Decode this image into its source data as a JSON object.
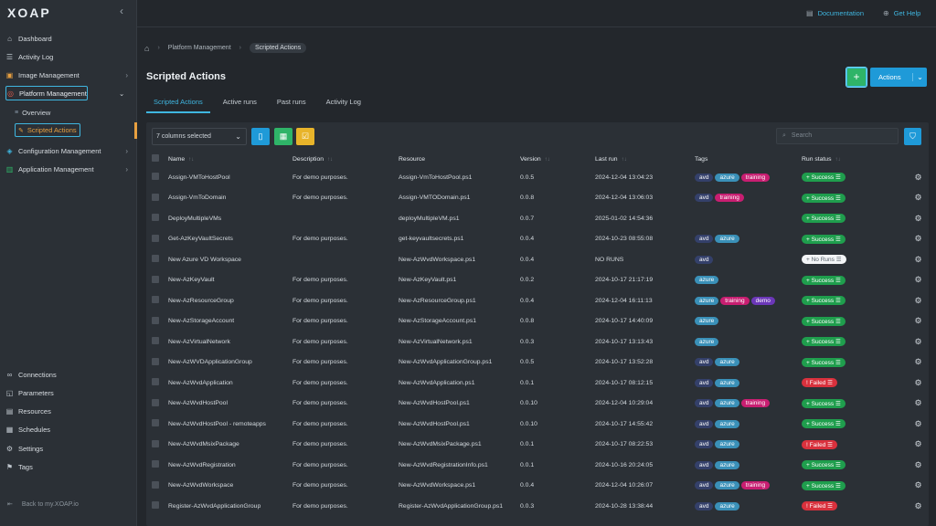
{
  "app": {
    "logo_text": "XOAP"
  },
  "sidebar": {
    "collapse_glyph": "‹",
    "items": [
      {
        "label": "Dashboard",
        "icon": "home-icon"
      },
      {
        "label": "Activity Log",
        "icon": "list-icon"
      },
      {
        "label": "Image Management",
        "icon": "image-icon"
      },
      {
        "label": "Platform Management",
        "icon": "platform-icon"
      },
      {
        "label": "Configuration Management",
        "icon": "config-icon"
      },
      {
        "label": "Application Management",
        "icon": "chart-icon"
      }
    ],
    "platform_sub": [
      {
        "label": "Overview"
      },
      {
        "label": "Scripted Actions"
      }
    ],
    "bottom_items": [
      {
        "label": "Connections"
      },
      {
        "label": "Parameters"
      },
      {
        "label": "Resources"
      },
      {
        "label": "Schedules"
      },
      {
        "label": "Settings"
      },
      {
        "label": "Tags"
      }
    ],
    "back_label": "Back to my.XOAP.io"
  },
  "topbar": {
    "documentation": "Documentation",
    "get_help": "Get Help"
  },
  "breadcrumb": {
    "level1": "Platform Management",
    "level2": "Scripted Actions"
  },
  "page": {
    "title": "Scripted Actions",
    "add_label": "+",
    "actions_label": "Actions"
  },
  "tabs": [
    {
      "label": "Scripted Actions",
      "active": true
    },
    {
      "label": "Active runs"
    },
    {
      "label": "Past runs"
    },
    {
      "label": "Activity Log"
    }
  ],
  "toolbar": {
    "columns_selected": "7 columns selected",
    "search_placeholder": "Search"
  },
  "table": {
    "headers": [
      "Name",
      "Description",
      "Resource",
      "Version",
      "Last run",
      "Tags",
      "Run status"
    ],
    "rows": [
      {
        "name": "Assign-VMToHostPool",
        "description": "For demo purposes.",
        "resource": "Assign-VmToHostPool.ps1",
        "version": "0.0.5",
        "last_run": "2024-12-04 13:04:23",
        "tags": [
          "avd",
          "azure",
          "training"
        ],
        "status": "Success"
      },
      {
        "name": "Assign-VmToDomain",
        "description": "For demo purposes.",
        "resource": "Assign-VMTODomain.ps1",
        "version": "0.0.8",
        "last_run": "2024-12-04 13:06:03",
        "tags": [
          "avd",
          "training"
        ],
        "status": "Success"
      },
      {
        "name": "DeployMultipleVMs",
        "description": "",
        "resource": "deployMultipleVM.ps1",
        "version": "0.0.7",
        "last_run": "2025-01-02 14:54:36",
        "tags": [],
        "status": "Success"
      },
      {
        "name": "Get-AzKeyVaultSecrets",
        "description": "For demo purposes.",
        "resource": "get-keyvaultsecrets.ps1",
        "version": "0.0.4",
        "last_run": "2024-10-23 08:55:08",
        "tags": [
          "avd",
          "azure"
        ],
        "status": "Success"
      },
      {
        "name": "New Azure VD Workspace",
        "description": "",
        "resource": "New-AzWvdWorkspace.ps1",
        "version": "0.0.4",
        "last_run": "NO RUNS",
        "tags": [
          "avd"
        ],
        "status": "No Runs"
      },
      {
        "name": "New-AzKeyVault",
        "description": "For demo purposes.",
        "resource": "New-AzKeyVault.ps1",
        "version": "0.0.2",
        "last_run": "2024-10-17 21:17:19",
        "tags": [
          "azure"
        ],
        "status": "Success"
      },
      {
        "name": "New-AzResourceGroup",
        "description": "For demo purposes.",
        "resource": "New-AzResourceGroup.ps1",
        "version": "0.0.4",
        "last_run": "2024-12-04 16:11:13",
        "tags": [
          "azure",
          "training",
          "demo"
        ],
        "status": "Success"
      },
      {
        "name": "New-AzStorageAccount",
        "description": "For demo purposes.",
        "resource": "New-AzStorageAccount.ps1",
        "version": "0.0.8",
        "last_run": "2024-10-17 14:40:09",
        "tags": [
          "azure"
        ],
        "status": "Success"
      },
      {
        "name": "New-AzVirtualNetwork",
        "description": "For demo purposes.",
        "resource": "New-AzVirtualNetwork.ps1",
        "version": "0.0.3",
        "last_run": "2024-10-17 13:13:43",
        "tags": [
          "azure"
        ],
        "status": "Success"
      },
      {
        "name": "New-AzWVDApplicationGroup",
        "description": "For demo purposes.",
        "resource": "New-AzWvdApplicationGroup.ps1",
        "version": "0.0.5",
        "last_run": "2024-10-17 13:52:28",
        "tags": [
          "avd",
          "azure"
        ],
        "status": "Success"
      },
      {
        "name": "New-AzWvdApplication",
        "description": "For demo purposes.",
        "resource": "New-AzWvdApplication.ps1",
        "version": "0.0.1",
        "last_run": "2024-10-17 08:12:15",
        "tags": [
          "avd",
          "azure"
        ],
        "status": "Failed"
      },
      {
        "name": "New-AzWvdHostPool",
        "description": "For demo purposes.",
        "resource": "New-AzWvdHostPool.ps1",
        "version": "0.0.10",
        "last_run": "2024-12-04 10:29:04",
        "tags": [
          "avd",
          "azure",
          "training"
        ],
        "status": "Success"
      },
      {
        "name": "New-AzWvdHostPool - remoteapps",
        "description": "For demo purposes.",
        "resource": "New-AzWvdHostPool.ps1",
        "version": "0.0.10",
        "last_run": "2024-10-17 14:55:42",
        "tags": [
          "avd",
          "azure"
        ],
        "status": "Success"
      },
      {
        "name": "New-AzWvdMsixPackage",
        "description": "For demo purposes.",
        "resource": "New-AzWvdMsixPackage.ps1",
        "version": "0.0.1",
        "last_run": "2024-10-17 08:22:53",
        "tags": [
          "avd",
          "azure"
        ],
        "status": "Failed"
      },
      {
        "name": "New-AzWvdRegistration",
        "description": "For demo purposes.",
        "resource": "New-AzWvdRegistrationInfo.ps1",
        "version": "0.0.1",
        "last_run": "2024-10-16 20:24:05",
        "tags": [
          "avd",
          "azure"
        ],
        "status": "Success"
      },
      {
        "name": "New-AzWvdWorkspace",
        "description": "For demo purposes.",
        "resource": "New-AzWvdWorkspace.ps1",
        "version": "0.0.4",
        "last_run": "2024-12-04 10:26:07",
        "tags": [
          "avd",
          "azure",
          "training"
        ],
        "status": "Success"
      },
      {
        "name": "Register-AzWvdApplicationGroup",
        "description": "For demo purposes.",
        "resource": "Register-AzWvdApplicationGroup.ps1",
        "version": "0.0.3",
        "last_run": "2024-10-28 13:38:44",
        "tags": [
          "avd",
          "azure"
        ],
        "status": "Failed"
      }
    ]
  },
  "colors": {
    "accent": "#1f9ad8",
    "success": "#1f9e4d",
    "failed": "#d9313d",
    "training": "#c81e71",
    "demo": "#6b37b8"
  }
}
